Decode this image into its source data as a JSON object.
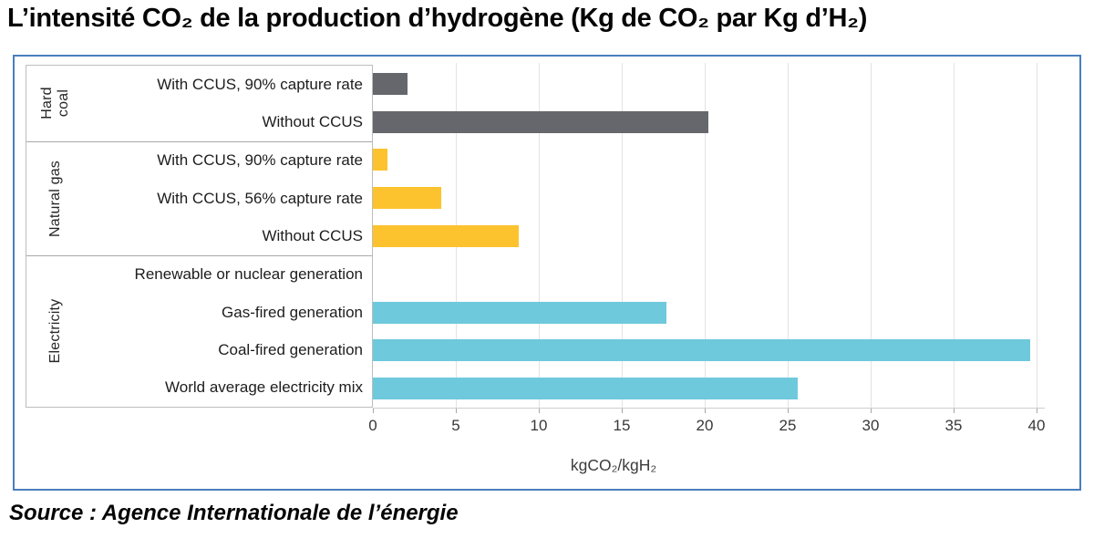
{
  "title": "L’intensité CO₂ de la production d’hydrogène (Kg de CO₂ par Kg d’H₂)",
  "source": "Source : Agence Internationale de l’énergie",
  "chart_data": {
    "type": "bar",
    "orientation": "horizontal",
    "title": "L’intensité CO₂ de la production d’hydrogène (Kg de CO₂ par Kg d’H₂)",
    "xlabel": "kgCO₂/kgH₂",
    "xlim": [
      0,
      40
    ],
    "xticks": [
      0,
      5,
      10,
      15,
      20,
      25,
      30,
      35,
      40
    ],
    "grid": true,
    "groups": [
      {
        "name": "Hard coal",
        "color": "#65676c",
        "bars": [
          {
            "label": "With CCUS, 90% capture rate",
            "value": 2.1
          },
          {
            "label": "Without CCUS",
            "value": 20.2
          }
        ]
      },
      {
        "name": "Natural gas",
        "color": "#fcc32e",
        "bars": [
          {
            "label": "With CCUS, 90% capture rate",
            "value": 0.9
          },
          {
            "label": "With CCUS, 56% capture rate",
            "value": 4.1
          },
          {
            "label": "Without CCUS",
            "value": 8.8
          }
        ]
      },
      {
        "name": "Electricity",
        "color": "#6ec9dc",
        "bars": [
          {
            "label": "Renewable or nuclear generation",
            "value": 0
          },
          {
            "label": "Gas-fired generation",
            "value": 17.7
          },
          {
            "label": "Coal-fired generation",
            "value": 39.6
          },
          {
            "label": "World average electricity mix",
            "value": 25.6
          }
        ]
      }
    ],
    "colors": {
      "frame_border": "#4a7ebc",
      "gridline": "#e3e3e3",
      "separator": "#a9a9a9",
      "axis_line": "#cfcfcf"
    }
  }
}
